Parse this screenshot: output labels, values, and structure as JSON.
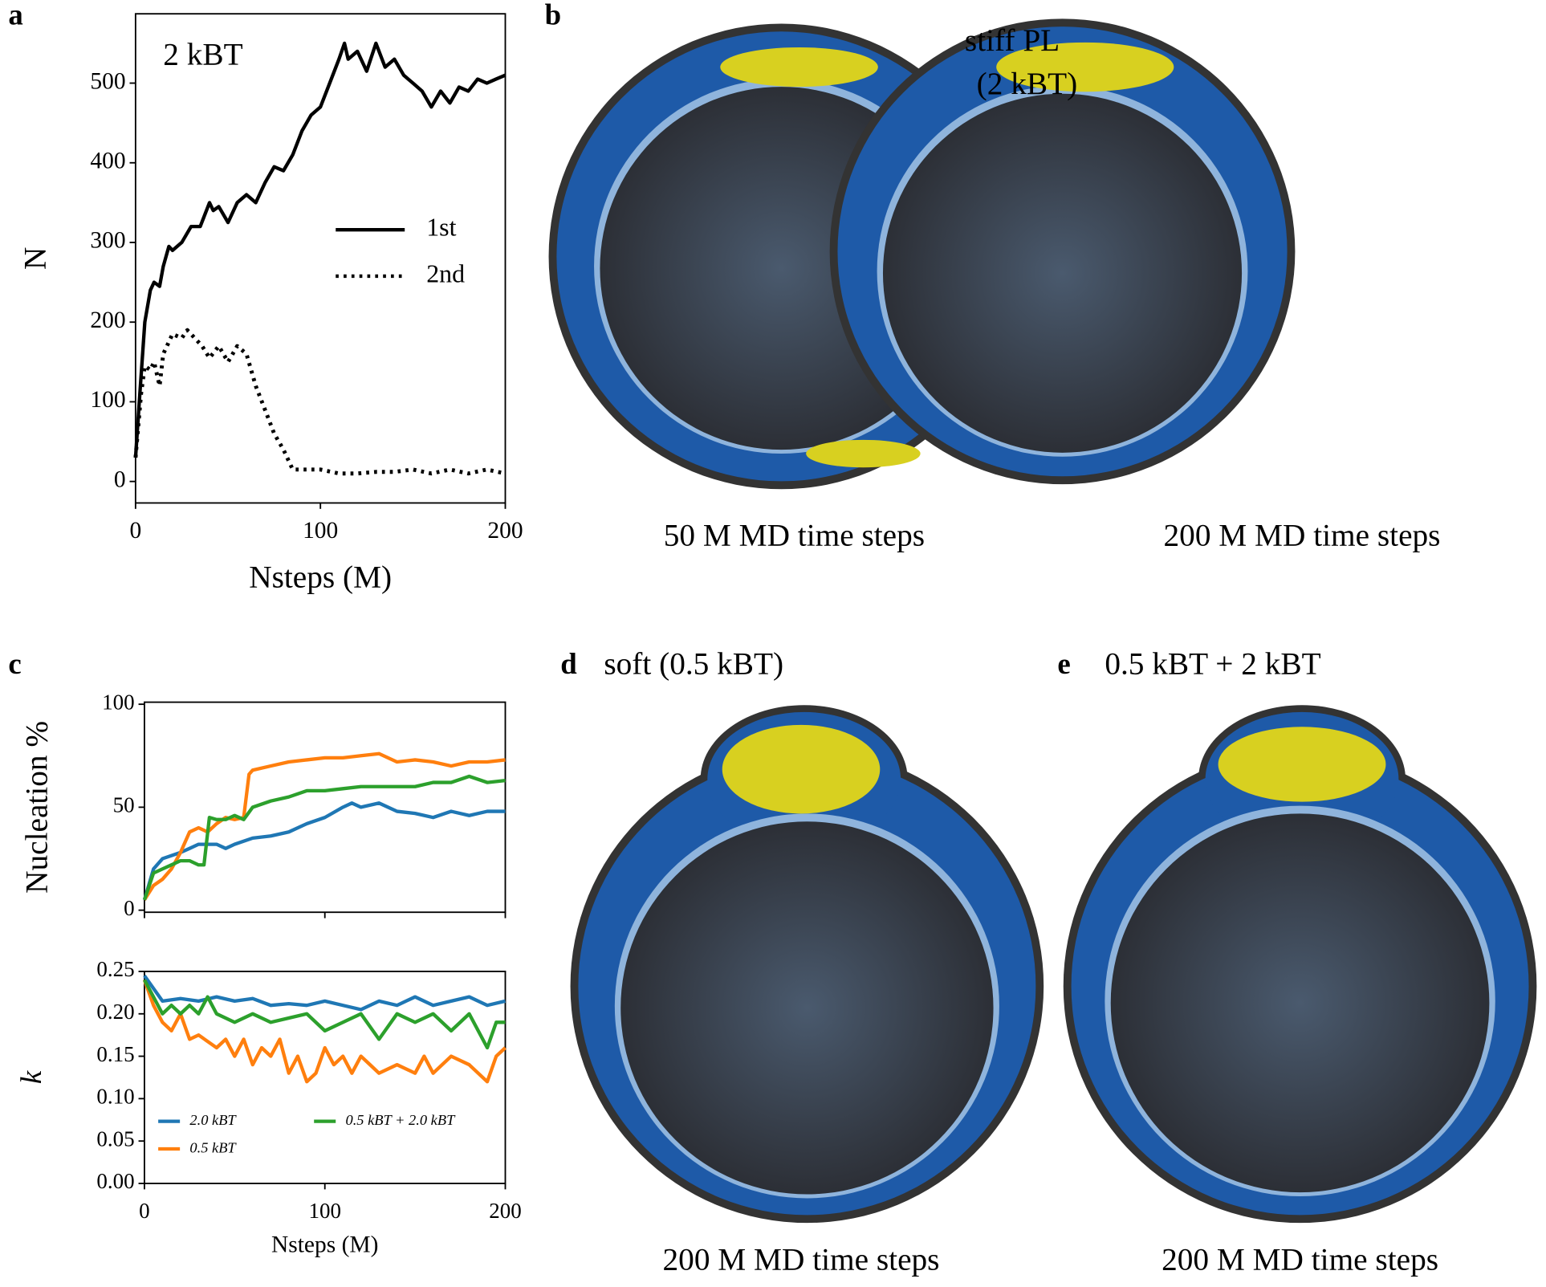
{
  "chart_data": [
    {
      "type": "line",
      "panel": "a",
      "annotation": "2 kBT",
      "xlabel": "Nsteps (M)",
      "ylabel": "N",
      "xlim": [
        0,
        200
      ],
      "xticks": [
        0,
        100,
        200
      ],
      "ylim": [
        -27,
        587
      ],
      "yticks": [
        0,
        100,
        200,
        300,
        400,
        500
      ],
      "series": [
        {
          "name": "1st",
          "color": "#000000",
          "dash": "solid",
          "x": [
            0,
            2,
            5,
            8,
            10,
            13,
            15,
            18,
            20,
            25,
            30,
            35,
            40,
            42,
            45,
            50,
            55,
            60,
            65,
            70,
            75,
            80,
            85,
            90,
            95,
            100,
            105,
            110,
            113,
            115,
            120,
            125,
            130,
            135,
            140,
            145,
            150,
            155,
            160,
            165,
            170,
            175,
            180,
            185,
            190,
            195,
            200
          ],
          "values": [
            30,
            100,
            200,
            240,
            250,
            245,
            270,
            295,
            290,
            300,
            320,
            320,
            350,
            340,
            345,
            325,
            350,
            360,
            350,
            375,
            395,
            390,
            410,
            440,
            460,
            470,
            500,
            530,
            550,
            530,
            540,
            515,
            550,
            520,
            530,
            510,
            500,
            490,
            470,
            490,
            475,
            495,
            490,
            505,
            500,
            505,
            510
          ]
        },
        {
          "name": "2nd",
          "color": "#000000",
          "dash": "dotted",
          "x": [
            0,
            3,
            5,
            8,
            10,
            13,
            15,
            20,
            25,
            28,
            32,
            36,
            40,
            45,
            50,
            55,
            60,
            65,
            70,
            75,
            80,
            85,
            90,
            100,
            110,
            120,
            130,
            140,
            150,
            160,
            170,
            180,
            190,
            200
          ],
          "values": [
            30,
            110,
            145,
            140,
            150,
            120,
            160,
            185,
            180,
            190,
            180,
            170,
            155,
            170,
            150,
            170,
            160,
            120,
            90,
            60,
            40,
            15,
            15,
            15,
            10,
            10,
            12,
            12,
            15,
            10,
            15,
            10,
            15,
            10
          ]
        }
      ]
    },
    {
      "type": "line",
      "panel": "c",
      "ylabel": "Nucleation %",
      "xtick_labels": false,
      "xlim": [
        0,
        200
      ],
      "xticks": [
        0,
        100,
        200
      ],
      "ylim": [
        -1,
        101
      ],
      "yticks": [
        0,
        50,
        100
      ],
      "series": [
        {
          "name": "2.0 kBT",
          "color": "#1f77b4",
          "x": [
            0,
            5,
            10,
            20,
            25,
            30,
            40,
            45,
            50,
            60,
            70,
            80,
            90,
            100,
            110,
            115,
            120,
            130,
            140,
            150,
            160,
            170,
            180,
            190,
            200
          ],
          "values": [
            5,
            20,
            25,
            28,
            30,
            32,
            32,
            30,
            32,
            35,
            36,
            38,
            42,
            45,
            50,
            52,
            50,
            52,
            48,
            47,
            45,
            48,
            46,
            48,
            48
          ]
        },
        {
          "name": "0.5 kBT",
          "color": "#ff7f0e",
          "x": [
            0,
            5,
            10,
            15,
            20,
            25,
            30,
            35,
            40,
            45,
            50,
            55,
            58,
            60,
            70,
            80,
            90,
            100,
            110,
            120,
            130,
            140,
            150,
            160,
            170,
            180,
            190,
            200
          ],
          "values": [
            5,
            12,
            15,
            20,
            28,
            38,
            40,
            38,
            42,
            45,
            44,
            45,
            66,
            68,
            70,
            72,
            73,
            74,
            74,
            75,
            76,
            72,
            73,
            72,
            70,
            72,
            72,
            73
          ]
        },
        {
          "name": "0.5 kBT + 2.0 kBT",
          "color": "#2ca02c",
          "x": [
            0,
            5,
            10,
            15,
            20,
            25,
            30,
            33,
            36,
            40,
            45,
            50,
            55,
            60,
            70,
            80,
            90,
            100,
            110,
            120,
            130,
            140,
            150,
            160,
            170,
            180,
            190,
            200
          ],
          "values": [
            5,
            18,
            20,
            22,
            24,
            24,
            22,
            22,
            45,
            44,
            44,
            46,
            44,
            50,
            53,
            55,
            58,
            58,
            59,
            60,
            60,
            60,
            60,
            62,
            62,
            65,
            62,
            63
          ]
        }
      ]
    },
    {
      "type": "line",
      "ylabel": "k",
      "xlabel": "Nsteps (M)",
      "legend": "lower left",
      "xlim": [
        0,
        200
      ],
      "xticks": [
        0,
        100,
        200
      ],
      "ylim": [
        0,
        0.25
      ],
      "yticks": [
        {
          "value": 0,
          "label": "0.00"
        },
        {
          "value": 0.05,
          "label": "0.05"
        },
        {
          "value": 0.1,
          "label": "0.10"
        },
        {
          "value": 0.15,
          "label": "0.15"
        },
        {
          "value": 0.2,
          "label": "0.20"
        },
        {
          "value": 0.25,
          "label": "0.25"
        }
      ],
      "series": [
        {
          "name": "2.0 kBT",
          "color": "#1f77b4",
          "x": [
            0,
            10,
            20,
            30,
            40,
            50,
            60,
            70,
            80,
            90,
            100,
            110,
            120,
            130,
            140,
            150,
            160,
            170,
            180,
            190,
            200
          ],
          "values": [
            0.245,
            0.215,
            0.218,
            0.215,
            0.22,
            0.215,
            0.218,
            0.21,
            0.212,
            0.21,
            0.215,
            0.21,
            0.205,
            0.215,
            0.21,
            0.22,
            0.21,
            0.215,
            0.22,
            0.21,
            0.215
          ]
        },
        {
          "name": "0.5 kBT",
          "color": "#ff7f0e",
          "x": [
            0,
            5,
            10,
            15,
            20,
            25,
            30,
            40,
            45,
            50,
            55,
            60,
            65,
            70,
            75,
            80,
            85,
            90,
            95,
            100,
            105,
            110,
            115,
            120,
            125,
            130,
            140,
            150,
            155,
            160,
            170,
            180,
            190,
            195,
            200
          ],
          "values": [
            0.24,
            0.21,
            0.19,
            0.18,
            0.2,
            0.17,
            0.175,
            0.16,
            0.17,
            0.15,
            0.17,
            0.14,
            0.16,
            0.15,
            0.17,
            0.13,
            0.15,
            0.12,
            0.13,
            0.16,
            0.14,
            0.15,
            0.13,
            0.15,
            0.14,
            0.13,
            0.14,
            0.13,
            0.15,
            0.13,
            0.15,
            0.14,
            0.12,
            0.15,
            0.16
          ]
        },
        {
          "name": "0.5 kBT + 2.0 kBT",
          "color": "#2ca02c",
          "x": [
            0,
            10,
            15,
            20,
            25,
            30,
            35,
            40,
            50,
            60,
            70,
            80,
            90,
            100,
            110,
            120,
            130,
            140,
            150,
            160,
            170,
            180,
            190,
            195,
            200
          ],
          "values": [
            0.24,
            0.2,
            0.21,
            0.2,
            0.21,
            0.2,
            0.22,
            0.2,
            0.19,
            0.2,
            0.19,
            0.195,
            0.2,
            0.18,
            0.19,
            0.2,
            0.17,
            0.2,
            0.19,
            0.2,
            0.18,
            0.2,
            0.16,
            0.19,
            0.19
          ]
        }
      ]
    }
  ],
  "images": {
    "b": {
      "label": "b",
      "annotation": [
        "stiff PL",
        "(2 kBT)"
      ],
      "captions": [
        "50 M MD time steps",
        "200 M MD time steps"
      ]
    },
    "d": {
      "label": "d",
      "title": "soft (0.5 kBT)",
      "caption": "200 M MD time steps"
    },
    "e": {
      "label": "e",
      "title": "0.5 kBT + 2 kBT",
      "caption": "200 M MD time steps"
    }
  }
}
